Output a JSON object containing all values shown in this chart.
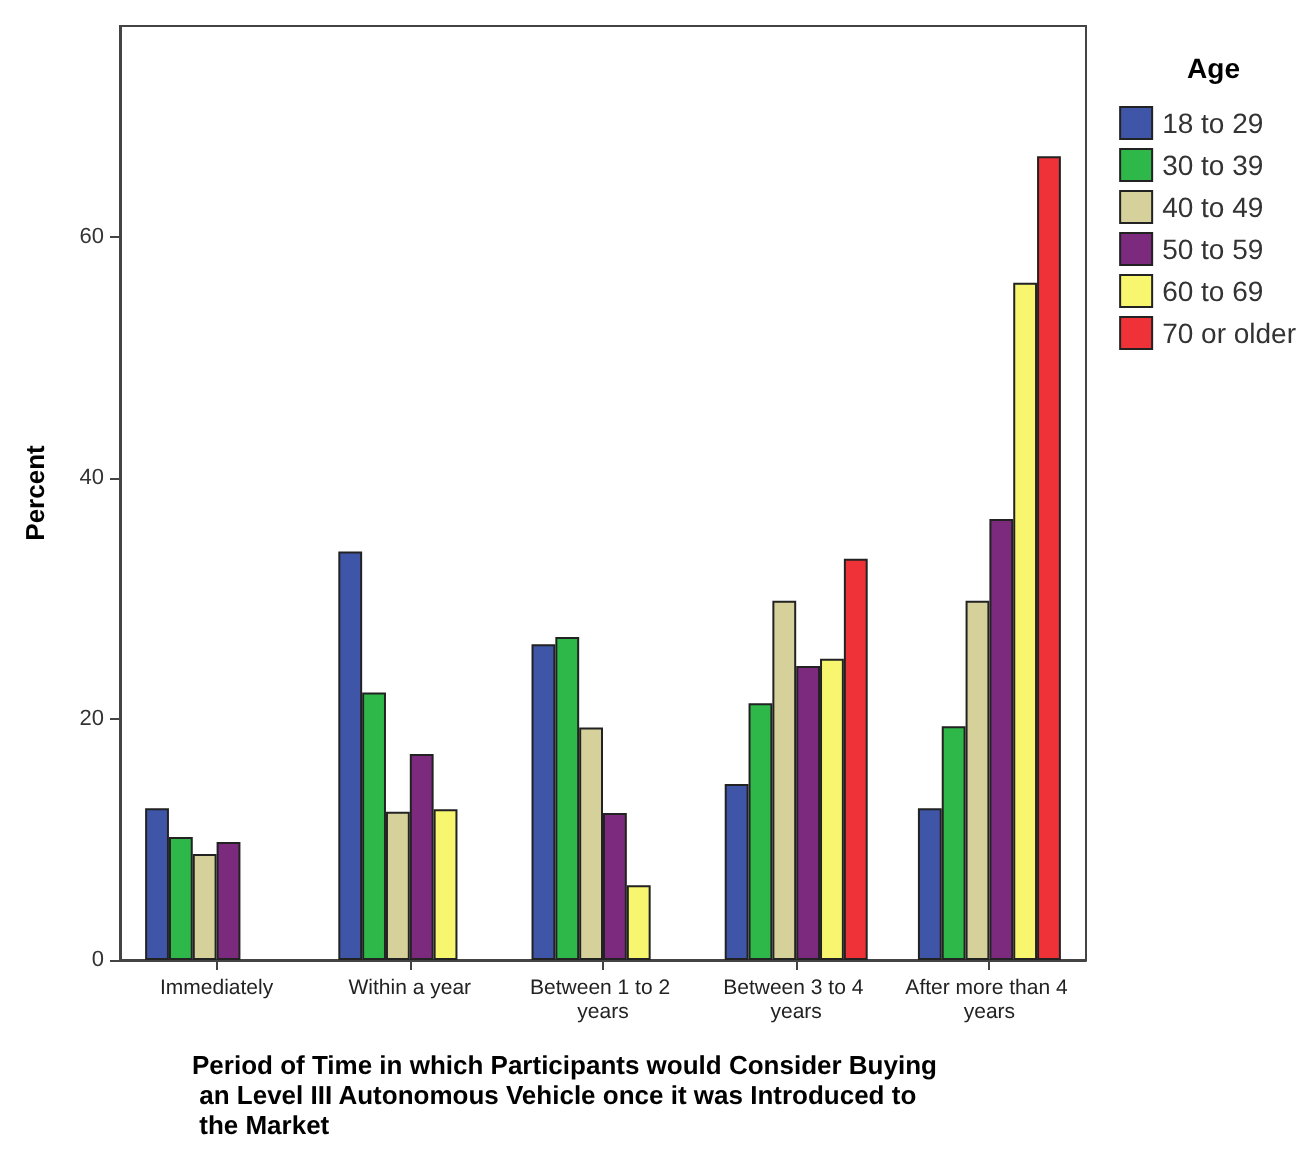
{
  "chart_data": {
    "type": "bar",
    "xlabel": "Period of Time in which Participants would Consider Buying an Level III Autonomous Vehicle once it was Introduced to the Market",
    "ylabel": "Percent",
    "legend_title": "Age",
    "categories": [
      "Immediately",
      "Within a year",
      "Between 1 to 2 years",
      "Between 3 to 4 years",
      "After more than 4 years"
    ],
    "series": [
      {
        "name": "18 to 29",
        "color": "#3f56a8",
        "values": [
          12.6,
          33.9,
          26.2,
          14.6,
          12.6
        ]
      },
      {
        "name": "30 to 39",
        "color": "#2fb84a",
        "values": [
          10.2,
          22.2,
          26.8,
          21.3,
          19.4
        ]
      },
      {
        "name": "40 to 49",
        "color": "#d6d19a",
        "values": [
          8.8,
          12.3,
          19.3,
          29.8,
          29.8
        ]
      },
      {
        "name": "50 to 59",
        "color": "#7b2a7e",
        "values": [
          9.8,
          17.1,
          12.2,
          24.4,
          36.6
        ]
      },
      {
        "name": "60 to 69",
        "color": "#f8f56e",
        "values": [
          null,
          12.5,
          6.2,
          25.0,
          56.2
        ]
      },
      {
        "name": "70 or older",
        "color": "#ee3238",
        "values": [
          null,
          null,
          null,
          33.3,
          66.7
        ]
      }
    ],
    "ylim": [
      0,
      77.5
    ],
    "yticks": [
      0,
      20,
      40,
      60
    ],
    "grid": false,
    "legend": "top right"
  }
}
